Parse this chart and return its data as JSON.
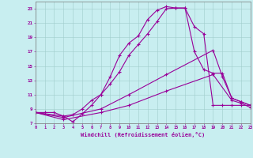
{
  "xlabel": "Windchill (Refroidissement éolien,°C)",
  "xlim": [
    0,
    23
  ],
  "ylim": [
    7,
    24
  ],
  "bg_color": "#c8eef0",
  "line_color": "#990099",
  "grid_color": "#a0cccc",
  "curve1_x": [
    0,
    1,
    2,
    3,
    4,
    5,
    6,
    7,
    8,
    9,
    10,
    11,
    12,
    13,
    14,
    15,
    16,
    17,
    18,
    19,
    20,
    21,
    22,
    23
  ],
  "curve1_y": [
    8.5,
    8.5,
    8.5,
    8.0,
    7.2,
    8.3,
    9.5,
    11.0,
    13.5,
    16.5,
    18.2,
    19.2,
    21.5,
    22.8,
    23.3,
    23.1,
    23.1,
    20.5,
    19.5,
    9.5,
    9.5,
    9.5,
    9.5,
    9.5
  ],
  "curve2_x": [
    0,
    3,
    4,
    5,
    6,
    7,
    8,
    9,
    10,
    11,
    12,
    13,
    14,
    15,
    16,
    17,
    18,
    19,
    20,
    21,
    22,
    23
  ],
  "curve2_y": [
    8.5,
    8.0,
    8.2,
    9.0,
    10.2,
    11.0,
    12.5,
    14.2,
    16.5,
    18.0,
    19.5,
    21.2,
    23.0,
    23.1,
    23.1,
    17.0,
    14.5,
    14.0,
    14.0,
    10.5,
    10.0,
    9.5
  ],
  "curve3_x": [
    0,
    3,
    7,
    10,
    14,
    19,
    20,
    21,
    22,
    23
  ],
  "curve3_y": [
    8.5,
    7.8,
    9.0,
    11.0,
    13.8,
    17.2,
    13.5,
    10.5,
    10.0,
    9.5
  ],
  "curve4_x": [
    0,
    3,
    7,
    10,
    14,
    19,
    21,
    22,
    23
  ],
  "curve4_y": [
    8.5,
    7.5,
    8.5,
    9.5,
    11.5,
    13.8,
    10.2,
    9.8,
    9.2
  ]
}
